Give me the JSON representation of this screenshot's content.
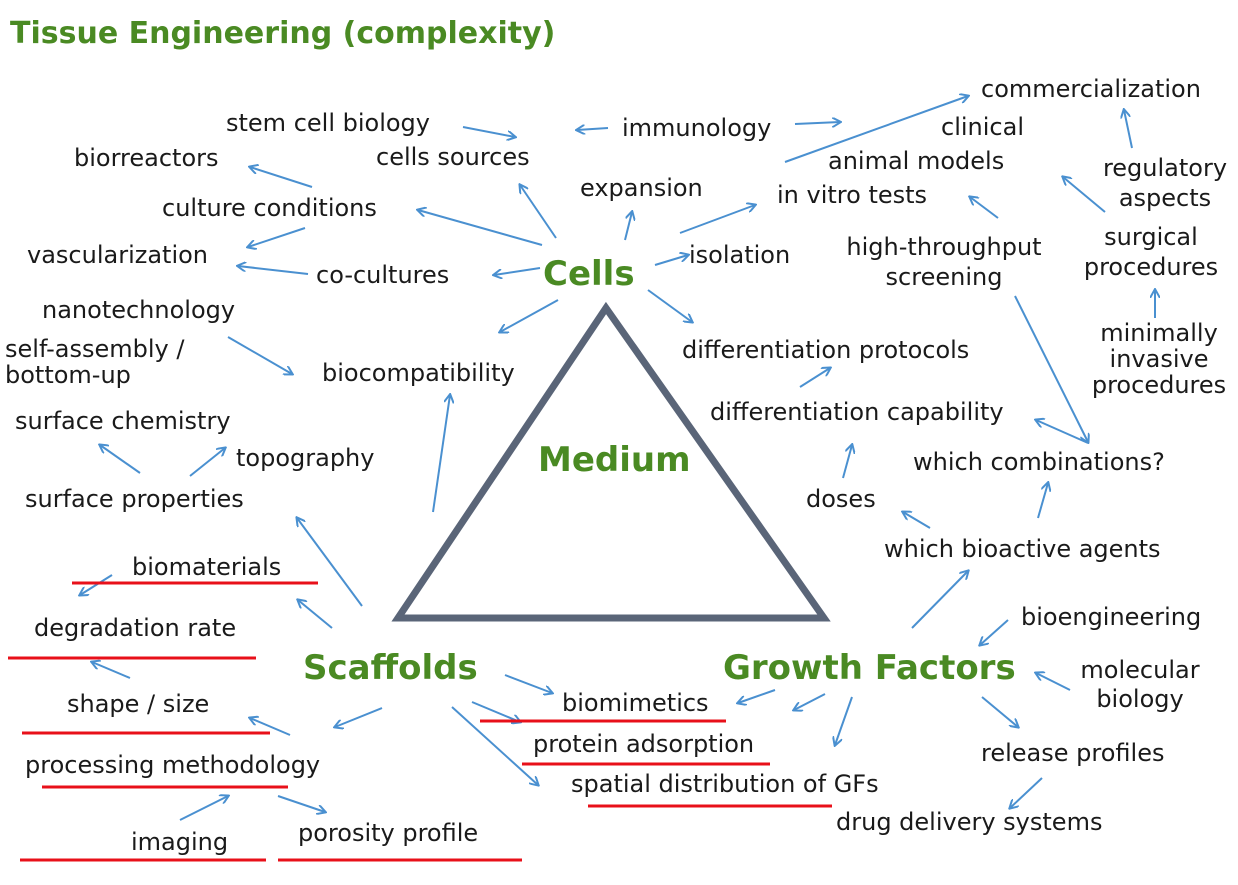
{
  "title": "Tissue Engineering (complexity)",
  "hubs": {
    "cells": "Cells",
    "medium": "Medium",
    "scaffolds": "Scaffolds",
    "growth_factors": "Growth Factors"
  },
  "terms": {
    "commercialization": "commercialization",
    "clinical": "clinical",
    "animal_models": "animal models",
    "in_vitro_tests": "in vitro tests",
    "regulatory_aspects": "regulatory\naspects",
    "surgical_procedures": "surgical\nprocedures",
    "minimally_invasive_procedures": "minimally\ninvasive\nprocedures",
    "high_throughput_screening": "high-throughput\nscreening",
    "stem_cell_biology": "stem cell biology",
    "cells_sources": "cells sources",
    "immunology": "immunology",
    "biorreactors": "biorreactors",
    "expansion": "expansion",
    "culture_conditions": "culture conditions",
    "isolation": "isolation",
    "vascularization": "vascularization",
    "co_cultures": "co-cultures",
    "nanotechnology": "nanotechnology",
    "self_assembly": "self-assembly /\nbottom-up",
    "biocompatibility": "biocompatibility",
    "differentiation_protocols": "differentiation protocols",
    "differentiation_capability": "differentiation capability",
    "surface_chemistry": "surface chemistry",
    "topography": "topography",
    "which_combinations": "which combinations?",
    "surface_properties": "surface properties",
    "doses": "doses",
    "which_bioactive_agents": "which bioactive agents",
    "biomaterials": "biomaterials",
    "bioengineering": "bioengineering",
    "degradation_rate": "degradation rate",
    "molecular_biology": "molecular\nbiology",
    "shape_size": "shape / size",
    "biomimetics": "biomimetics",
    "protein_adsorption": "protein adsorption",
    "release_profiles": "release profiles",
    "processing_methodology": "processing methodology",
    "spatial_distribution": "spatial distribution of GFs",
    "drug_delivery_systems": "drug delivery systems",
    "imaging": "imaging",
    "porosity_profile": "porosity profile"
  },
  "colors": {
    "hub_green": "#4a8a23",
    "arrow_blue": "#4a90d0",
    "triangle_gray": "#5a6578",
    "underline_red": "#e8101a",
    "text": "#1a1a1a"
  }
}
